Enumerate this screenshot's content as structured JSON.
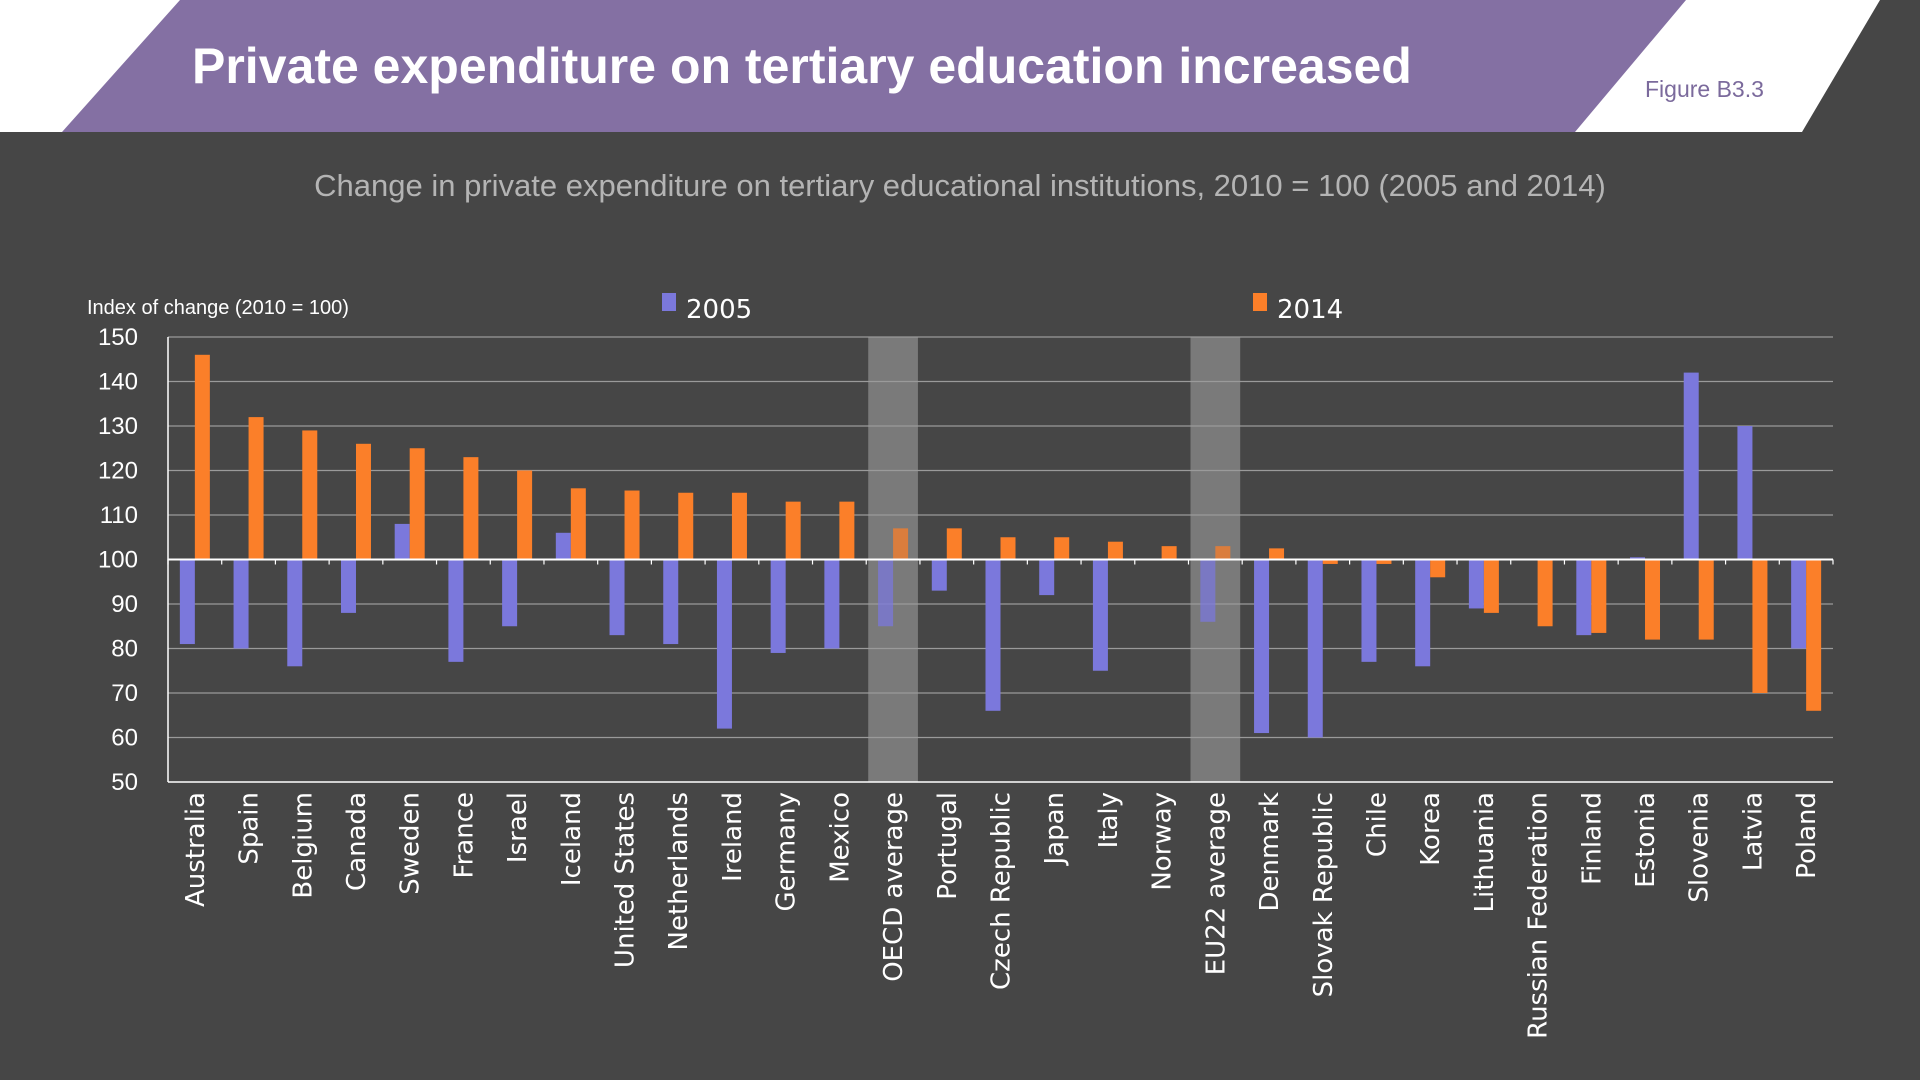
{
  "header": {
    "title": "Private expenditure on tertiary education increased",
    "figure_label": "Figure B3.3",
    "banner_color": "#8470a3"
  },
  "chart_data": {
    "type": "bar",
    "title": "Change in private expenditure on tertiary educational institutions, 2010 = 100 (2005 and 2014)",
    "ylabel": "Index of change (2010 = 100)",
    "ylim": [
      50,
      150
    ],
    "yticks": [
      50,
      60,
      70,
      80,
      90,
      100,
      110,
      120,
      130,
      140,
      150
    ],
    "baseline": 100,
    "grid": true,
    "legend_position": "top",
    "categories": [
      "Australia",
      "Spain",
      "Belgium",
      "Canada",
      "Sweden",
      "France",
      "Israel",
      "Iceland",
      "United States",
      "Netherlands",
      "Ireland",
      "Germany",
      "Mexico",
      "OECD average",
      "Portugal",
      "Czech Republic",
      "Japan",
      "Italy",
      "Norway",
      "EU22 average",
      "Denmark",
      "Slovak Republic",
      "Chile",
      "Korea",
      "Lithuania",
      "Russian Federation",
      "Finland",
      "Estonia",
      "Slovenia",
      "Latvia",
      "Poland"
    ],
    "highlighted": [
      "OECD average",
      "EU22 average"
    ],
    "series": [
      {
        "name": "2005",
        "color": "#7b78dc",
        "values": [
          81,
          80,
          76,
          88,
          108,
          77,
          85,
          106,
          83,
          81,
          62,
          79,
          80,
          85,
          93,
          66,
          92,
          75,
          null,
          86,
          61,
          60,
          77,
          76,
          89,
          null,
          83,
          100.5,
          142,
          130,
          80
        ]
      },
      {
        "name": "2014",
        "color": "#fb7f29",
        "values": [
          146,
          132,
          129,
          126,
          125,
          123,
          120,
          116,
          115.5,
          115,
          115,
          113,
          113,
          107,
          107,
          105,
          105,
          104,
          103,
          103,
          102.5,
          99,
          99,
          96,
          88,
          85,
          83.5,
          82,
          82,
          70,
          66
        ]
      }
    ]
  }
}
